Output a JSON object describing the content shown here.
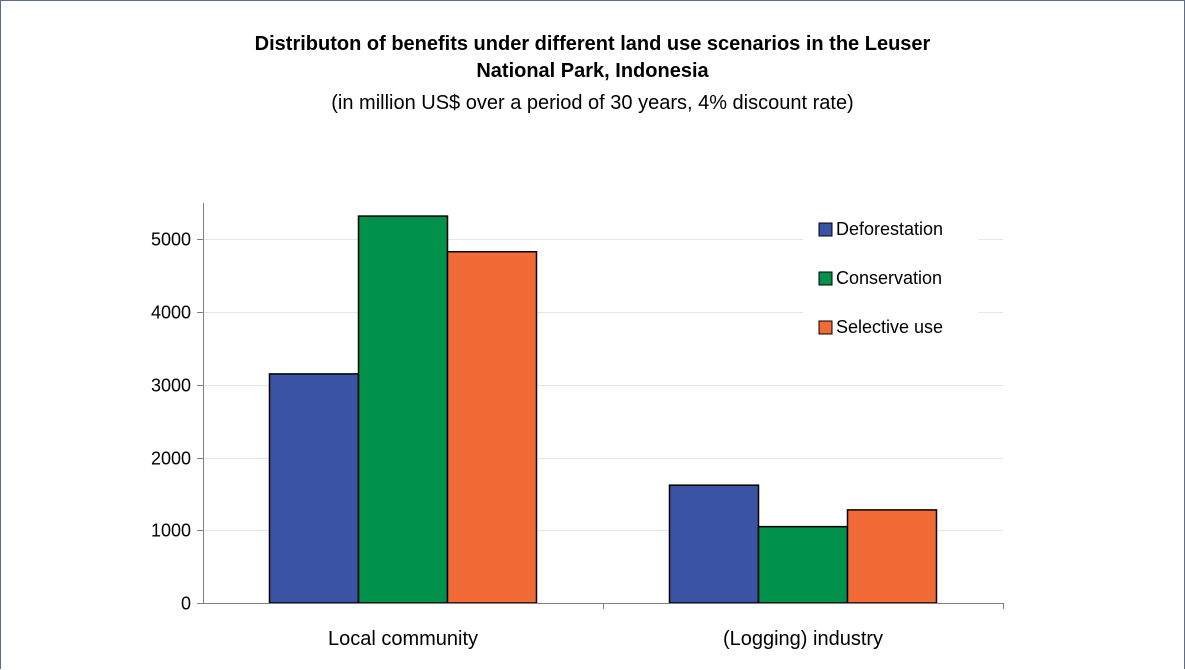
{
  "colors": {
    "frame": "#5b6d8a",
    "gridline": "#e6e6e6",
    "axis": "#808080",
    "bar_outline": "#000000"
  },
  "chart_data": {
    "type": "bar",
    "title_line1": "Distributon of benefits under different land use scenarios in the Leuser",
    "title_line2": "National Park, Indonesia",
    "subtitle": "(in million US$ over a period of 30 years, 4% discount rate)",
    "xlabel": "",
    "ylabel": "",
    "categories": [
      "Local community",
      "(Logging) industry"
    ],
    "series": [
      {
        "name": "Deforestation",
        "color": "#3a53a4",
        "values": [
          3150,
          1620
        ]
      },
      {
        "name": "Conservation",
        "color": "#00914a",
        "values": [
          5320,
          1050
        ]
      },
      {
        "name": "Selective use",
        "color": "#f26a35",
        "values": [
          4830,
          1280
        ]
      }
    ],
    "yticks": [
      0,
      1000,
      2000,
      3000,
      4000,
      5000
    ],
    "ylim": [
      0,
      5500
    ],
    "grid": true,
    "legend_position": "top-right"
  }
}
